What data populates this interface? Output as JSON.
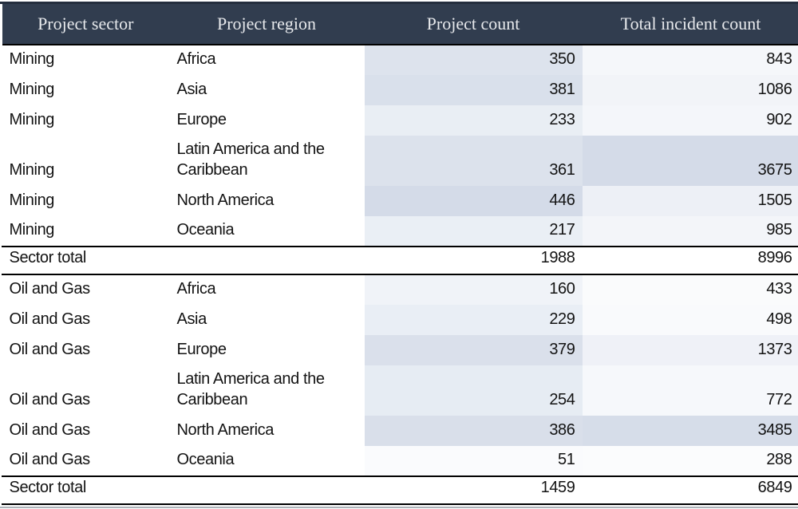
{
  "chart_data": {
    "type": "table",
    "title": "",
    "columns": [
      {
        "label": "Project sector"
      },
      {
        "label": "Project region"
      },
      {
        "label": "Project count"
      },
      {
        "label": "Total incident count"
      }
    ],
    "heatmap_colors": {
      "min_color": "#ffffff",
      "max_color": "#d4dbe8",
      "note": "numeric cells shaded per column relative to column max"
    },
    "rows": [
      {
        "kind": "data",
        "sector": "Mining",
        "region": "Africa",
        "count": 350,
        "incidents": 843,
        "tall": false,
        "count_bg": "#dde3ed",
        "incidents_bg": "#f5f7fa"
      },
      {
        "kind": "data",
        "sector": "Mining",
        "region": "Asia",
        "count": 381,
        "incidents": 1086,
        "tall": false,
        "count_bg": "#d9e0eb",
        "incidents_bg": "#f2f4f8"
      },
      {
        "kind": "data",
        "sector": "Mining",
        "region": "Europe",
        "count": 233,
        "incidents": 902,
        "tall": false,
        "count_bg": "#e9eef4",
        "incidents_bg": "#f4f6fa"
      },
      {
        "kind": "data",
        "sector": "Mining",
        "region": "Latin America and the Caribbean",
        "count": 361,
        "incidents": 3675,
        "tall": true,
        "count_bg": "#dce2ec",
        "incidents_bg": "#d4dbe8"
      },
      {
        "kind": "data",
        "sector": "Mining",
        "region": "North America",
        "count": 446,
        "incidents": 1505,
        "tall": false,
        "count_bg": "#d4dbe8",
        "incidents_bg": "#edf0f6"
      },
      {
        "kind": "data",
        "sector": "Mining",
        "region": "Oceania",
        "count": 217,
        "incidents": 985,
        "tall": false,
        "count_bg": "#eaeff5",
        "incidents_bg": "#f3f5f9"
      },
      {
        "kind": "total",
        "label": "Sector total",
        "count": 1988,
        "incidents": 8996
      },
      {
        "kind": "data",
        "sector": "Oil and Gas",
        "region": "Africa",
        "count": 160,
        "incidents": 433,
        "tall": false,
        "count_bg": "#f0f3f8",
        "incidents_bg": "#fafbfc"
      },
      {
        "kind": "data",
        "sector": "Oil and Gas",
        "region": "Asia",
        "count": 229,
        "incidents": 498,
        "tall": false,
        "count_bg": "#e9eef5",
        "incidents_bg": "#f9fafc"
      },
      {
        "kind": "data",
        "sector": "Oil and Gas",
        "region": "Europe",
        "count": 379,
        "incidents": 1373,
        "tall": false,
        "count_bg": "#dae0eb",
        "incidents_bg": "#eff1f7"
      },
      {
        "kind": "data",
        "sector": "Oil and Gas",
        "region": "Latin America and the Caribbean",
        "count": 254,
        "incidents": 772,
        "tall": true,
        "count_bg": "#e6ecf3",
        "incidents_bg": "#f6f8fb"
      },
      {
        "kind": "data",
        "sector": "Oil and Gas",
        "region": "North America",
        "count": 386,
        "incidents": 3485,
        "tall": false,
        "count_bg": "#d9dfea",
        "incidents_bg": "#d6dde9"
      },
      {
        "kind": "data",
        "sector": "Oil and Gas",
        "region": "Oceania",
        "count": 51,
        "incidents": 288,
        "tall": false,
        "count_bg": "#fafbfd",
        "incidents_bg": "#fbfcfd"
      },
      {
        "kind": "total",
        "label": "Sector total",
        "count": 1459,
        "incidents": 6849
      }
    ]
  }
}
